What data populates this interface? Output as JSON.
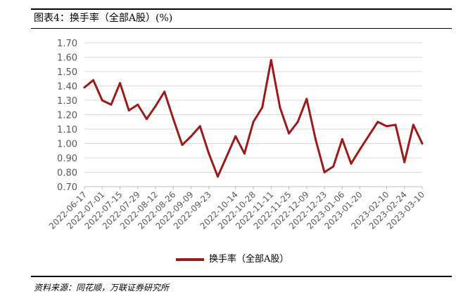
{
  "figure": {
    "title": "图表4：换手率（全部A股）(%)",
    "source": "资料来源：同花顺，万联证券研究所"
  },
  "colors": {
    "series": "#9b1b1b",
    "grid": "#d9d9d9",
    "axis_text": "#595959"
  },
  "chart_data": {
    "type": "line",
    "title": "",
    "xlabel": "",
    "ylabel": "",
    "ylim": [
      0.7,
      1.7
    ],
    "yticks": [
      "0.70",
      "0.80",
      "0.90",
      "1.00",
      "1.10",
      "1.20",
      "1.30",
      "1.40",
      "1.50",
      "1.60",
      "1.70"
    ],
    "y_grid": true,
    "legend_position": "bottom",
    "x_tick_labels": [
      "2022-06-17",
      "2022-07-01",
      "2022-07-15",
      "2022-07-29",
      "2022-08-12",
      "2022-08-26",
      "2022-09-09",
      "2022-09-23",
      "2022-10-14",
      "2022-10-28",
      "2022-11-11",
      "2022-11-25",
      "2022-12-09",
      "2022-12-23",
      "2023-01-06",
      "2023-01-20",
      "2023-02-10",
      "2023-02-24",
      "2023-03-10"
    ],
    "x": [
      "2022-06-17",
      "2022-06-24",
      "2022-07-01",
      "2022-07-08",
      "2022-07-15",
      "2022-07-22",
      "2022-07-29",
      "2022-08-05",
      "2022-08-12",
      "2022-08-19",
      "2022-08-26",
      "2022-09-02",
      "2022-09-09",
      "2022-09-16",
      "2022-09-23",
      "2022-09-30",
      "2022-10-14",
      "2022-10-21",
      "2022-10-28",
      "2022-11-04",
      "2022-11-11",
      "2022-11-18",
      "2022-11-25",
      "2022-12-02",
      "2022-12-09",
      "2022-12-16",
      "2022-12-23",
      "2022-12-30",
      "2023-01-06",
      "2023-01-13",
      "2023-01-20",
      "2023-02-03",
      "2023-02-10",
      "2023-02-17",
      "2023-02-24",
      "2023-03-03",
      "2023-03-10"
    ],
    "series": [
      {
        "name": "换手率（全部A股）",
        "values": [
          1.39,
          1.44,
          1.3,
          1.27,
          1.42,
          1.23,
          1.27,
          1.17,
          1.26,
          1.36,
          1.17,
          0.99,
          1.05,
          1.12,
          0.93,
          0.77,
          1.05,
          0.93,
          1.15,
          1.25,
          1.58,
          1.25,
          1.07,
          1.15,
          1.31,
          1.03,
          0.8,
          0.84,
          1.03,
          0.86,
          0.96,
          1.15,
          1.12,
          1.13,
          0.87,
          1.13,
          1.0
        ]
      }
    ]
  }
}
